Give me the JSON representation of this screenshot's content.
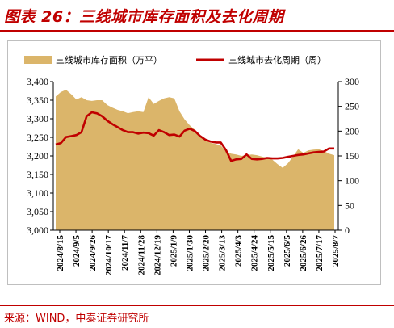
{
  "header": {
    "title": "图表 26：三线城市库存面积及去化周期"
  },
  "footer": {
    "source": "来源：WIND，中泰证券研究所"
  },
  "chart_data": {
    "type": "area+line",
    "legend_placement": "top",
    "grid": false,
    "colors": {
      "area": "#dbb56a",
      "line": "#c00000",
      "title": "#c00000"
    },
    "series": [
      {
        "name": "三线城市库存面积（万平）",
        "type": "area",
        "axis": "left",
        "values": [
          3360,
          3372,
          3378,
          3366,
          3352,
          3358,
          3350,
          3348,
          3350,
          3350,
          3337,
          3330,
          3324,
          3320,
          3315,
          3318,
          3320,
          3318,
          3358,
          3340,
          3348,
          3355,
          3358,
          3355,
          3320,
          3298,
          3282,
          3270,
          3252,
          3243,
          3235,
          3232,
          3228,
          3213,
          3206,
          3204,
          3200,
          3202,
          3204,
          3202,
          3198,
          3195,
          3190,
          3178,
          3168,
          3180,
          3198,
          3218,
          3208,
          3215,
          3217,
          3218,
          3213,
          3206,
          3202
        ]
      },
      {
        "name": "三线城市去化周期（周）",
        "type": "line",
        "axis": "right",
        "values": [
          173,
          176,
          188,
          190,
          192,
          198,
          230,
          238,
          236,
          230,
          221,
          214,
          208,
          202,
          198,
          198,
          195,
          197,
          196,
          191,
          202,
          198,
          192,
          193,
          189,
          201,
          205,
          200,
          190,
          183,
          179,
          177,
          177,
          162,
          140,
          143,
          144,
          153,
          144,
          143,
          144,
          146,
          145,
          145,
          146,
          148,
          150,
          152,
          153,
          155,
          157,
          158,
          159,
          165,
          165
        ]
      }
    ],
    "x_tick_labels": [
      "2024/8/15",
      "2024/9/5",
      "2024/9/26",
      "2024/10/17",
      "2024/11/7",
      "2024/11/28",
      "2024/12/19",
      "2025/1/9",
      "2025/1/30",
      "2025/2/20",
      "2025/3/13",
      "2025/4/3",
      "2025/4/24",
      "2025/5/15",
      "2025/6/5",
      "2025/6/26",
      "2025/7/17",
      "2025/8/7"
    ],
    "y_left": {
      "min": 3000,
      "max": 3400,
      "ticks": [
        "3,000",
        "3,050",
        "3,100",
        "3,150",
        "3,200",
        "3,250",
        "3,300",
        "3,350",
        "3,400"
      ]
    },
    "y_right": {
      "min": 0,
      "max": 300,
      "ticks": [
        "0",
        "50",
        "100",
        "150",
        "200",
        "250",
        "300"
      ]
    }
  }
}
